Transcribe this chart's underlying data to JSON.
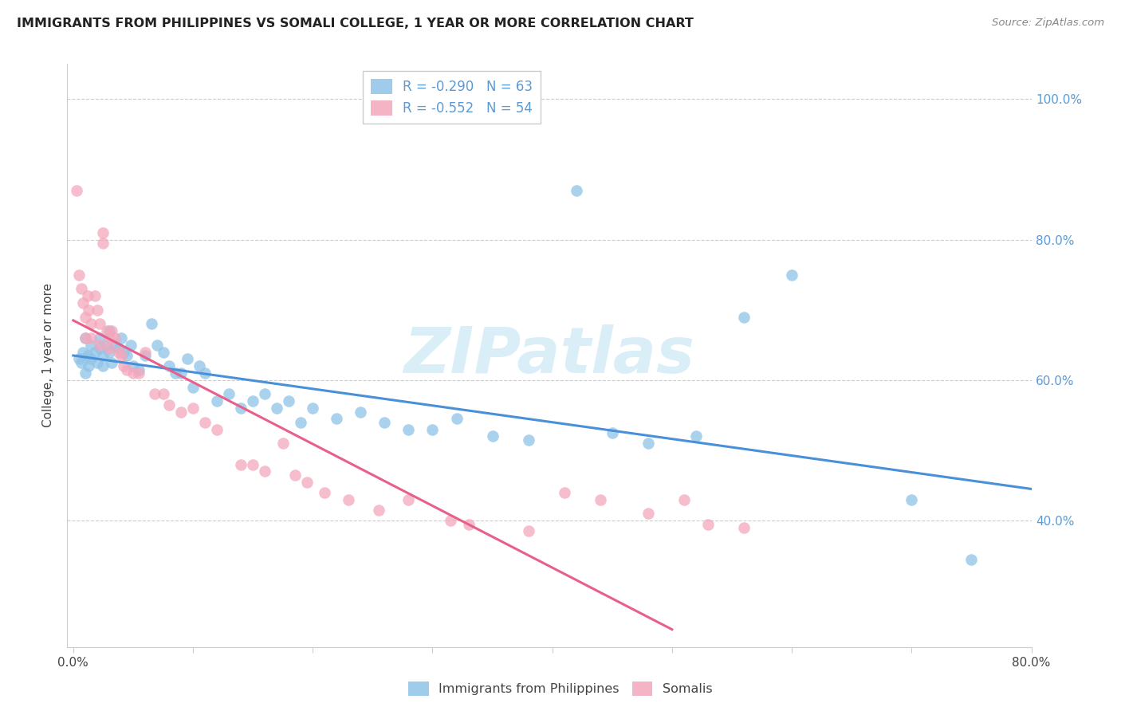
{
  "title": "IMMIGRANTS FROM PHILIPPINES VS SOMALI COLLEGE, 1 YEAR OR MORE CORRELATION CHART",
  "source": "Source: ZipAtlas.com",
  "ylabel": "College, 1 year or more",
  "ytick_labels": [
    "100.0%",
    "80.0%",
    "60.0%",
    "40.0%"
  ],
  "ytick_values": [
    1.0,
    0.8,
    0.6,
    0.4
  ],
  "xtick_values": [
    0.0,
    0.1,
    0.2,
    0.3,
    0.4,
    0.5,
    0.6,
    0.7,
    0.8
  ],
  "xlim": [
    -0.005,
    0.8
  ],
  "ylim": [
    0.22,
    1.05
  ],
  "legend1_label": "Immigrants from Philippines",
  "legend2_label": "Somalis",
  "R1": -0.29,
  "N1": 63,
  "R2": -0.552,
  "N2": 54,
  "color_blue": "#8fc4e8",
  "color_pink": "#f4a7bb",
  "color_blue_line": "#4a90d9",
  "color_pink_line": "#e8608a",
  "color_axis_text": "#5b9bd5",
  "watermark_color": "#daeef8",
  "blue_line_x0": 0.0,
  "blue_line_y0": 0.635,
  "blue_line_x1": 0.8,
  "blue_line_y1": 0.445,
  "pink_line_x0": 0.0,
  "pink_line_y0": 0.685,
  "pink_line_x1": 0.5,
  "pink_line_y1": 0.245,
  "blue_scatter_x": [
    0.005,
    0.007,
    0.008,
    0.01,
    0.01,
    0.012,
    0.013,
    0.015,
    0.015,
    0.018,
    0.02,
    0.022,
    0.022,
    0.025,
    0.025,
    0.028,
    0.03,
    0.03,
    0.032,
    0.035,
    0.038,
    0.04,
    0.042,
    0.045,
    0.048,
    0.05,
    0.055,
    0.06,
    0.065,
    0.07,
    0.075,
    0.08,
    0.085,
    0.09,
    0.095,
    0.1,
    0.105,
    0.11,
    0.12,
    0.13,
    0.14,
    0.15,
    0.16,
    0.17,
    0.18,
    0.19,
    0.2,
    0.22,
    0.24,
    0.26,
    0.28,
    0.3,
    0.32,
    0.35,
    0.38,
    0.42,
    0.45,
    0.48,
    0.52,
    0.56,
    0.6,
    0.7,
    0.75
  ],
  "blue_scatter_y": [
    0.63,
    0.625,
    0.64,
    0.66,
    0.61,
    0.635,
    0.62,
    0.65,
    0.63,
    0.64,
    0.625,
    0.645,
    0.66,
    0.635,
    0.62,
    0.65,
    0.64,
    0.67,
    0.625,
    0.65,
    0.645,
    0.66,
    0.64,
    0.635,
    0.65,
    0.62,
    0.615,
    0.635,
    0.68,
    0.65,
    0.64,
    0.62,
    0.61,
    0.61,
    0.63,
    0.59,
    0.62,
    0.61,
    0.57,
    0.58,
    0.56,
    0.57,
    0.58,
    0.56,
    0.57,
    0.54,
    0.56,
    0.545,
    0.555,
    0.54,
    0.53,
    0.53,
    0.545,
    0.52,
    0.515,
    0.87,
    0.525,
    0.51,
    0.52,
    0.69,
    0.75,
    0.43,
    0.345
  ],
  "pink_scatter_x": [
    0.003,
    0.005,
    0.007,
    0.008,
    0.01,
    0.01,
    0.012,
    0.013,
    0.015,
    0.015,
    0.018,
    0.02,
    0.022,
    0.022,
    0.025,
    0.025,
    0.028,
    0.03,
    0.03,
    0.032,
    0.035,
    0.038,
    0.04,
    0.042,
    0.045,
    0.05,
    0.055,
    0.06,
    0.068,
    0.075,
    0.08,
    0.09,
    0.1,
    0.11,
    0.12,
    0.14,
    0.15,
    0.16,
    0.175,
    0.185,
    0.195,
    0.21,
    0.23,
    0.255,
    0.28,
    0.315,
    0.33,
    0.38,
    0.41,
    0.44,
    0.48,
    0.51,
    0.53,
    0.56
  ],
  "pink_scatter_y": [
    0.87,
    0.75,
    0.73,
    0.71,
    0.69,
    0.66,
    0.72,
    0.7,
    0.68,
    0.66,
    0.72,
    0.7,
    0.68,
    0.65,
    0.81,
    0.795,
    0.67,
    0.66,
    0.645,
    0.67,
    0.66,
    0.64,
    0.635,
    0.62,
    0.615,
    0.61,
    0.61,
    0.64,
    0.58,
    0.58,
    0.565,
    0.555,
    0.56,
    0.54,
    0.53,
    0.48,
    0.48,
    0.47,
    0.51,
    0.465,
    0.455,
    0.44,
    0.43,
    0.415,
    0.43,
    0.4,
    0.395,
    0.385,
    0.44,
    0.43,
    0.41,
    0.43,
    0.395,
    0.39
  ]
}
